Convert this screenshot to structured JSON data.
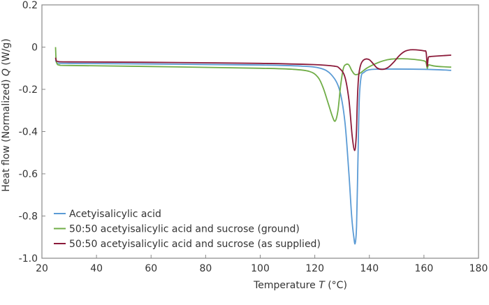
{
  "chart_data": {
    "type": "line",
    "xlabel": "Temperature",
    "xlabel_symbol": "T",
    "xlabel_unit": "(°C)",
    "ylabel": "Heat flow (Normalized)",
    "ylabel_symbol": "Q",
    "ylabel_unit": "(W/g)",
    "xlim": [
      20,
      180
    ],
    "ylim": [
      -1.0,
      0.2
    ],
    "xticks": [
      "20",
      "40",
      "60",
      "80",
      "100",
      "120",
      "140",
      "160",
      "180"
    ],
    "yticks": [
      "0.2",
      "0",
      "-0.2",
      "-0.4",
      "-0.6",
      "-0.8",
      "-1.0"
    ],
    "grid": false,
    "legend_position": "bottom-left",
    "series": [
      {
        "name": "Acetyisalicylic acid",
        "color": "#5b9bd5",
        "x": [
          25,
          25.3,
          26,
          30,
          60,
          100,
          115,
          122,
          126,
          129,
          131,
          132.5,
          133.5,
          134.3,
          134.8,
          135.3,
          135.8,
          136.3,
          137,
          138,
          140,
          145,
          160,
          170
        ],
        "y": [
          -0.06,
          -0.072,
          -0.076,
          -0.077,
          -0.08,
          -0.085,
          -0.09,
          -0.1,
          -0.13,
          -0.2,
          -0.35,
          -0.6,
          -0.8,
          -0.9,
          -0.93,
          -0.85,
          -0.55,
          -0.25,
          -0.14,
          -0.12,
          -0.107,
          -0.104,
          -0.105,
          -0.11
        ]
      },
      {
        "name": "50:50 acetyisalicylic acid and sucrose (ground)",
        "color": "#70ad47",
        "x": [
          25,
          25.2,
          25.6,
          26.5,
          30,
          60,
          100,
          112,
          118,
          121,
          123,
          125,
          126.5,
          127.5,
          128.5,
          129.5,
          130.5,
          131.5,
          132.5,
          133.5,
          134.5,
          135.5,
          137,
          139,
          142,
          145,
          148,
          152,
          156,
          160,
          160.8,
          161.2,
          161.6,
          162.2,
          164,
          167,
          170
        ],
        "y": [
          0,
          -0.06,
          -0.08,
          -0.085,
          -0.087,
          -0.092,
          -0.1,
          -0.105,
          -0.115,
          -0.14,
          -0.19,
          -0.27,
          -0.33,
          -0.35,
          -0.3,
          -0.18,
          -0.1,
          -0.082,
          -0.085,
          -0.11,
          -0.128,
          -0.13,
          -0.12,
          -0.1,
          -0.08,
          -0.065,
          -0.057,
          -0.055,
          -0.058,
          -0.065,
          -0.075,
          -0.1,
          -0.085,
          -0.085,
          -0.09,
          -0.093,
          -0.095
        ]
      },
      {
        "name": "50:50 acetyisalicylic acid and sucrose (as supplied)",
        "color": "#8b1a3a",
        "x": [
          25,
          25.3,
          26,
          30,
          60,
          100,
          120,
          127,
          129,
          131,
          132.5,
          133.7,
          134.6,
          135.2,
          135.6,
          136,
          136.5,
          137.3,
          138.5,
          140,
          141.5,
          143,
          145,
          147,
          149,
          151,
          153,
          155,
          157,
          160,
          160.8,
          161.2,
          161.6,
          162.3,
          164,
          170
        ],
        "y": [
          -0.05,
          -0.065,
          -0.068,
          -0.07,
          -0.072,
          -0.077,
          -0.083,
          -0.09,
          -0.1,
          -0.14,
          -0.25,
          -0.42,
          -0.49,
          -0.42,
          -0.25,
          -0.15,
          -0.1,
          -0.07,
          -0.057,
          -0.06,
          -0.08,
          -0.1,
          -0.105,
          -0.095,
          -0.07,
          -0.04,
          -0.02,
          -0.013,
          -0.013,
          -0.018,
          -0.025,
          -0.09,
          -0.05,
          -0.045,
          -0.043,
          -0.038
        ]
      }
    ]
  }
}
